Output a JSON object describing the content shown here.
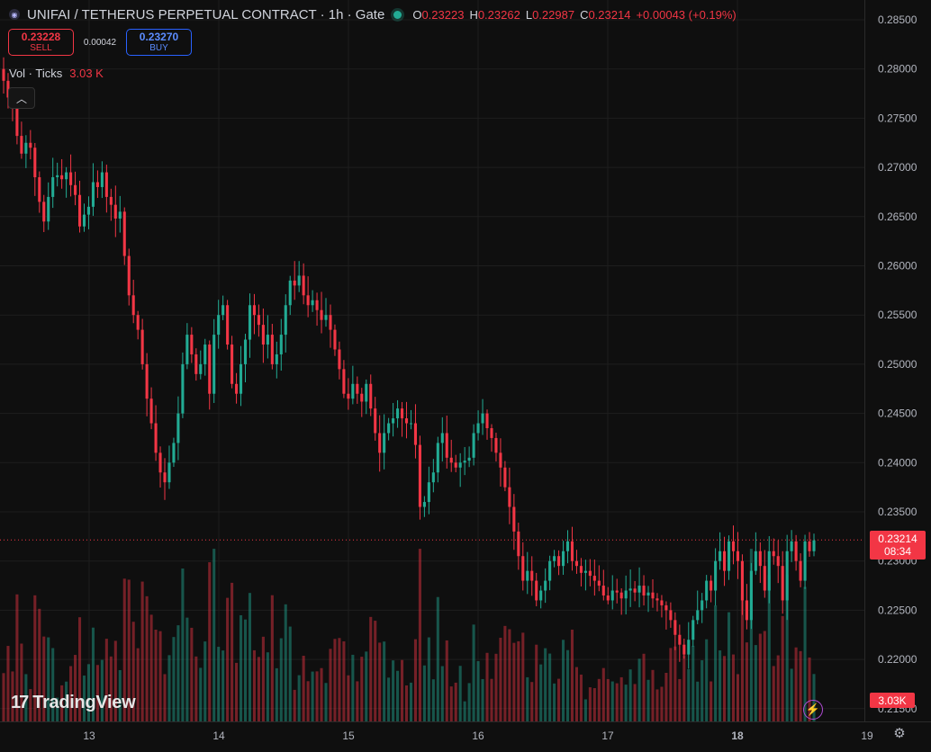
{
  "header": {
    "title": "UNIFAI / TETHERUS PERPETUAL CONTRACT · 1h · Gate",
    "o_label": "O",
    "o_value": "0.23223",
    "h_label": "H",
    "h_value": "0.23262",
    "l_label": "L",
    "l_value": "0.22987",
    "c_label": "C",
    "c_value": "0.23214",
    "change": "+0.00043 (+0.19%)"
  },
  "trade": {
    "sell_price": "0.23228",
    "sell_label": "SELL",
    "spread": "0.00042",
    "buy_price": "0.23270",
    "buy_label": "BUY"
  },
  "volume_legend": {
    "label": "Vol · Ticks",
    "value": "3.03 K"
  },
  "last_price_tag": {
    "price": "0.23214",
    "countdown": "08:34"
  },
  "volume_tag": "3.03K",
  "branding": "TradingView",
  "colors": {
    "up": "#22ab94",
    "down": "#f23645",
    "background": "#0f0f0f",
    "grid": "#1e1e1e"
  },
  "icons": {
    "symbol": "symbol-logo-icon",
    "live": "live-dot-icon",
    "collapse": "chevron-up-icon",
    "bolt": "lightning-icon",
    "settings": "gear-icon"
  },
  "chart_data": {
    "type": "candlestick",
    "interval": "1h",
    "y_ticks": [
      "0.28500",
      "0.28000",
      "0.27500",
      "0.27000",
      "0.26500",
      "0.26000",
      "0.25500",
      "0.25000",
      "0.24500",
      "0.24000",
      "0.23500",
      "0.23000",
      "0.22500",
      "0.22000",
      "0.21500"
    ],
    "ylim": [
      0.2135,
      0.2865
    ],
    "x_ticks": [
      "13",
      "14",
      "15",
      "16",
      "17",
      "18",
      "19"
    ],
    "last_close": 0.23214,
    "close_path": [
      0.2788,
      0.2771,
      0.2765,
      0.2732,
      0.2714,
      0.2725,
      0.272,
      0.269,
      0.2665,
      0.2645,
      0.267,
      0.269,
      0.2692,
      0.2688,
      0.2695,
      0.2682,
      0.2672,
      0.264,
      0.2652,
      0.266,
      0.2685,
      0.268,
      0.2695,
      0.267,
      0.2662,
      0.2648,
      0.2655,
      0.261,
      0.257,
      0.255,
      0.2535,
      0.25,
      0.2465,
      0.244,
      0.241,
      0.239,
      0.238,
      0.24,
      0.242,
      0.245,
      0.25,
      0.253,
      0.251,
      0.249,
      0.25,
      0.252,
      0.247,
      0.253,
      0.255,
      0.256,
      0.252,
      0.248,
      0.247,
      0.25,
      0.2525,
      0.256,
      0.255,
      0.254,
      0.252,
      0.253,
      0.25,
      0.251,
      0.253,
      0.256,
      0.2585,
      0.258,
      0.259,
      0.257,
      0.256,
      0.2565,
      0.2555,
      0.2545,
      0.255,
      0.2535,
      0.2515,
      0.2495,
      0.247,
      0.2465,
      0.248,
      0.247,
      0.2462,
      0.248,
      0.2455,
      0.243,
      0.241,
      0.243,
      0.244,
      0.2445,
      0.2455,
      0.2445,
      0.244,
      0.244,
      0.2418,
      0.2355,
      0.236,
      0.238,
      0.239,
      0.242,
      0.243,
      0.2405,
      0.24,
      0.2395,
      0.24,
      0.2402,
      0.2405,
      0.243,
      0.244,
      0.245,
      0.2435,
      0.2425,
      0.241,
      0.2395,
      0.2375,
      0.2355,
      0.233,
      0.2305,
      0.228,
      0.229,
      0.228,
      0.226,
      0.227,
      0.228,
      0.23,
      0.2305,
      0.2295,
      0.231,
      0.232,
      0.23,
      0.2295,
      0.2288,
      0.229,
      0.2285,
      0.228,
      0.2275,
      0.2265,
      0.226,
      0.227,
      0.2268,
      0.2262,
      0.227,
      0.2272,
      0.2268,
      0.2275,
      0.2265,
      0.2268,
      0.2262,
      0.226,
      0.2255,
      0.225,
      0.224,
      0.2225,
      0.2215,
      0.2205,
      0.222,
      0.224,
      0.225,
      0.226,
      0.228,
      0.227,
      0.23,
      0.231,
      0.229,
      0.232,
      0.231,
      0.23,
      0.226,
      0.224,
      0.229,
      0.231,
      0.2295,
      0.227,
      0.231,
      0.2305,
      0.2295,
      0.226,
      0.231,
      0.232,
      0.23,
      0.228,
      0.232,
      0.231,
      0.2321
    ],
    "volume_ylim": [
      0,
      3500
    ],
    "volume_labels_shown": [
      "3.03K"
    ]
  }
}
